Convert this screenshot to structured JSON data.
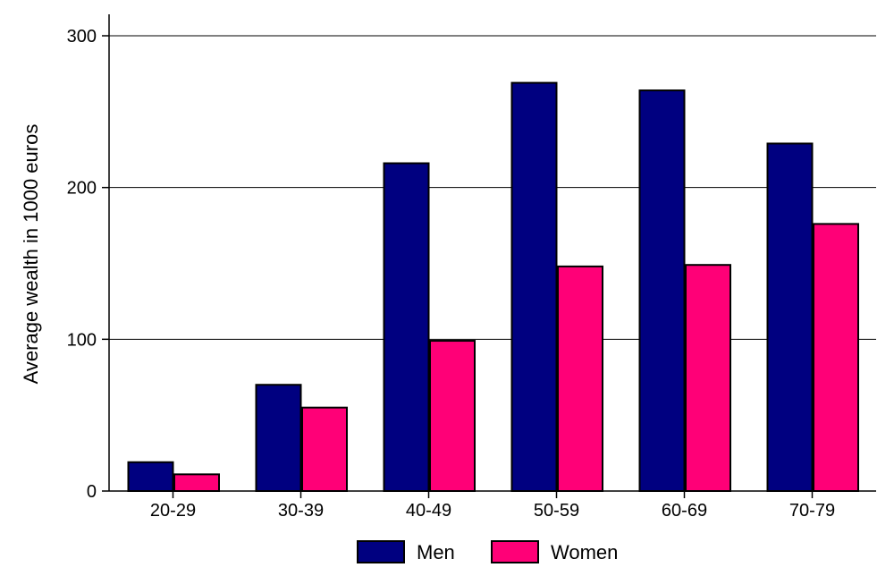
{
  "chart_data": {
    "type": "bar",
    "title": "",
    "xlabel": "",
    "ylabel": "Average wealth in 1000 euros",
    "categories": [
      "20-29",
      "30-39",
      "40-49",
      "50-59",
      "60-69",
      "70-79"
    ],
    "series": [
      {
        "name": "Men",
        "color": "#000080",
        "values": [
          19,
          70,
          216,
          269,
          264,
          229
        ]
      },
      {
        "name": "Women",
        "color": "#ff0077",
        "values": [
          11,
          55,
          99,
          148,
          149,
          176
        ]
      }
    ],
    "ylim": [
      0,
      300
    ],
    "yticks": [
      0,
      100,
      200,
      300
    ],
    "grid": true,
    "legend_position": "bottom"
  }
}
